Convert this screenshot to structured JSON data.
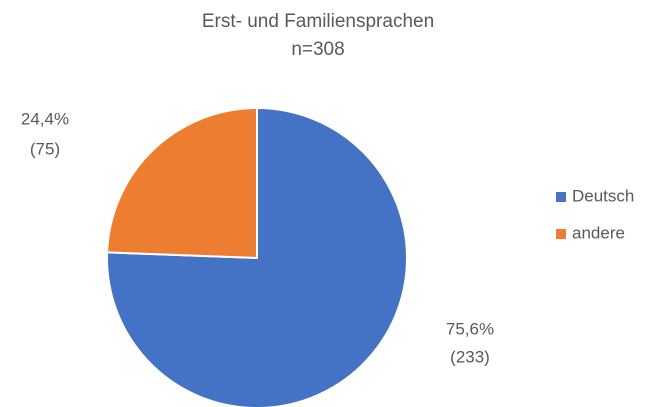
{
  "chart_data": {
    "type": "pie",
    "title": "Erst- und Familiensprachen",
    "subtitle": "n=308",
    "categories": [
      "Deutsch",
      "andere"
    ],
    "values": [
      75.6,
      24.4
    ],
    "value_labels": [
      "75,6%",
      "24,4%"
    ],
    "counts": [
      233,
      75
    ],
    "count_labels": [
      "(233)",
      "(75)"
    ],
    "colors": [
      "#4472c4",
      "#ed7d31"
    ],
    "legend": "right"
  }
}
